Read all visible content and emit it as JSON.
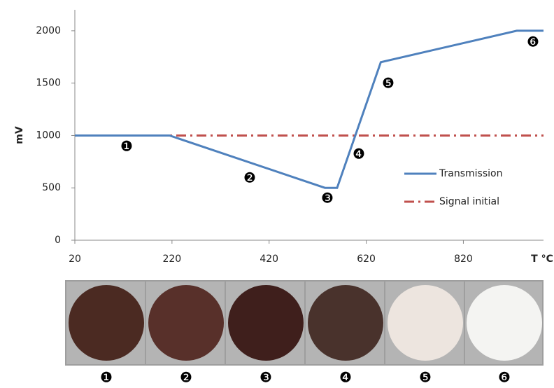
{
  "chart_data": {
    "type": "line",
    "y_label": "mV",
    "x_label": "T °C",
    "xlim": [
      20,
      985
    ],
    "xticks": [
      20,
      220,
      420,
      620,
      820
    ],
    "ylim": [
      0,
      2200
    ],
    "yticks": [
      0,
      500,
      1000,
      1500,
      2000
    ],
    "series": [
      {
        "name": "Transmission",
        "color": "#4f81bd",
        "style": "solid",
        "x": [
          20,
          215,
          535,
          560,
          650,
          930,
          985
        ],
        "values": [
          1000,
          1000,
          500,
          500,
          1700,
          2000,
          2000
        ]
      },
      {
        "name": "Signal initial",
        "color": "#c0504d",
        "style": "dashdot",
        "x": [
          20,
          985
        ],
        "values": [
          1000,
          1000
        ]
      }
    ],
    "legend": "right",
    "annotations": [
      "❶",
      "❷",
      "❸",
      "❹",
      "❺",
      "❻"
    ]
  },
  "photo_labels": [
    "❶",
    "❷",
    "❸",
    "❹",
    "❺",
    "❻"
  ]
}
